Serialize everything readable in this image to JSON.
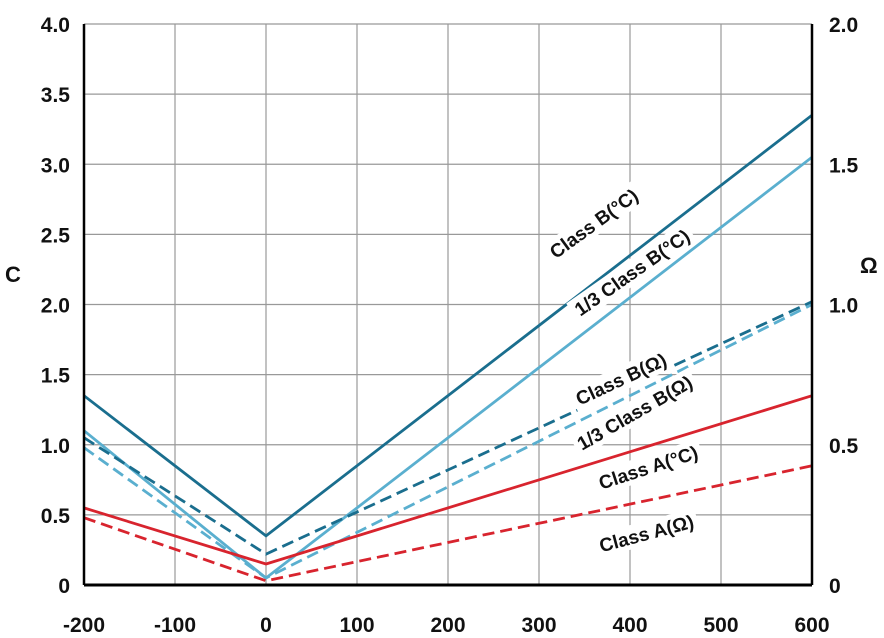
{
  "chart_data": {
    "type": "line",
    "title": "",
    "xlabel": "",
    "ylabel_left": "C",
    "ylabel_right": "Ω",
    "xlim": [
      -200,
      600
    ],
    "ylim_left": [
      0,
      4.0
    ],
    "ylim_right": [
      0,
      2.0
    ],
    "grid": true,
    "x_ticks": [
      "-200",
      "-100",
      "0",
      "100",
      "200",
      "300",
      "400",
      "500",
      "600"
    ],
    "y_ticks_left": [
      "0",
      "0.5",
      "1.0",
      "1.5",
      "2.0",
      "2.5",
      "3.0",
      "3.5",
      "4.0"
    ],
    "y_ticks_right": [
      "0",
      "0.5",
      "1.0",
      "1.5",
      "2.0"
    ],
    "colors": {
      "dark_blue": "#1a6e8e",
      "light_blue": "#5aafcf",
      "red": "#d8242e",
      "grid": "#999999"
    },
    "series": [
      {
        "name": "Class B(°C)",
        "color": "#1a6e8e",
        "dash": false,
        "axis": "left",
        "x": [
          -200,
          0,
          600
        ],
        "y": [
          1.35,
          0.35,
          3.35
        ]
      },
      {
        "name": "1/3 Class B(°C)",
        "color": "#5aafcf",
        "dash": false,
        "axis": "left",
        "x": [
          -200,
          0,
          600
        ],
        "y": [
          1.1,
          0.05,
          3.05
        ]
      },
      {
        "name": "Class B(Ω)",
        "color": "#1a6e8e",
        "dash": true,
        "axis": "left",
        "x": [
          -200,
          0,
          600
        ],
        "y": [
          1.05,
          0.22,
          2.02
        ]
      },
      {
        "name": "1/3 Class B(Ω)",
        "color": "#5aafcf",
        "dash": true,
        "axis": "left",
        "x": [
          -200,
          0,
          600
        ],
        "y": [
          0.98,
          0.05,
          2.0
        ]
      },
      {
        "name": "Class A(°C)",
        "color": "#d8242e",
        "dash": false,
        "axis": "left",
        "x": [
          -200,
          0,
          600
        ],
        "y": [
          0.55,
          0.15,
          1.35
        ]
      },
      {
        "name": "Class A(Ω)",
        "color": "#d8242e",
        "dash": true,
        "axis": "left",
        "x": [
          -200,
          0,
          600
        ],
        "y": [
          0.48,
          0.03,
          0.85
        ]
      }
    ],
    "annotations": [
      {
        "text": "Class B(°C)",
        "x": 360,
        "y": 2.58,
        "angle": -36
      },
      {
        "text": "1/3 Class B(°C)",
        "x": 402,
        "y": 2.23,
        "angle": -35
      },
      {
        "text": "Class B(Ω)",
        "x": 390,
        "y": 1.47,
        "angle": -25
      },
      {
        "text": "1/3 Class B(Ω)",
        "x": 405,
        "y": 1.23,
        "angle": -30
      },
      {
        "text": "Class A(°C)",
        "x": 420,
        "y": 0.84,
        "angle": -18
      },
      {
        "text": "Class A(Ω)",
        "x": 418,
        "y": 0.37,
        "angle": -15
      }
    ]
  }
}
